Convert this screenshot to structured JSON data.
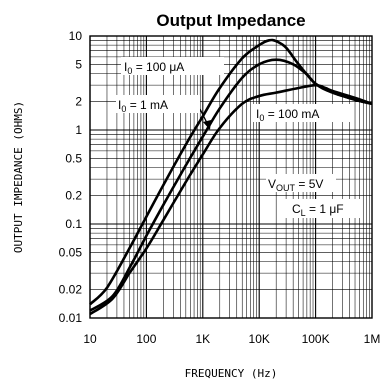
{
  "chart_data": {
    "type": "line",
    "title": "Output Impedance",
    "xlabel": "FREQUENCY (Hz)",
    "ylabel": "OUTPUT IMPEDANCE (OHMS)",
    "x_scale": "log",
    "y_scale": "log",
    "xlim": [
      10,
      1000000
    ],
    "ylim": [
      0.01,
      10
    ],
    "grid": true,
    "x_ticks": [
      {
        "value": 10,
        "label": "10"
      },
      {
        "value": 100,
        "label": "100"
      },
      {
        "value": 1000,
        "label": "1K"
      },
      {
        "value": 10000,
        "label": "10K"
      },
      {
        "value": 100000,
        "label": "100K"
      },
      {
        "value": 1000000,
        "label": "1M"
      }
    ],
    "y_ticks": [
      {
        "value": 10,
        "label": "10"
      },
      {
        "value": 5,
        "label": "5"
      },
      {
        "value": 2,
        "label": "2"
      },
      {
        "value": 1,
        "label": "1"
      },
      {
        "value": 0.5,
        "label": "0.5"
      },
      {
        "value": 0.2,
        "label": "0.2"
      },
      {
        "value": 0.1,
        "label": "0.1"
      },
      {
        "value": 0.05,
        "label": "0.05"
      },
      {
        "value": 0.02,
        "label": "0.02"
      },
      {
        "value": 0.01,
        "label": "0.01"
      }
    ],
    "series": [
      {
        "name": "I0 = 100 μA",
        "points": [
          [
            10,
            0.014
          ],
          [
            20,
            0.021
          ],
          [
            50,
            0.055
          ],
          [
            100,
            0.12
          ],
          [
            200,
            0.26
          ],
          [
            500,
            0.7
          ],
          [
            1000,
            1.4
          ],
          [
            2000,
            2.8
          ],
          [
            5000,
            5.8
          ],
          [
            10000,
            8.0
          ],
          [
            15000,
            9.0
          ],
          [
            20000,
            8.8
          ],
          [
            30000,
            7.5
          ],
          [
            50000,
            5.0
          ],
          [
            100000,
            3.1
          ],
          [
            200000,
            2.5
          ],
          [
            500000,
            2.1
          ],
          [
            1000000,
            1.9
          ]
        ]
      },
      {
        "name": "I0 = 1 mA",
        "points": [
          [
            10,
            0.012
          ],
          [
            25,
            0.017
          ],
          [
            50,
            0.034
          ],
          [
            100,
            0.075
          ],
          [
            200,
            0.16
          ],
          [
            500,
            0.42
          ],
          [
            1000,
            0.85
          ],
          [
            2000,
            1.7
          ],
          [
            5000,
            3.6
          ],
          [
            10000,
            5.0
          ],
          [
            20000,
            5.6
          ],
          [
            40000,
            5.0
          ],
          [
            70000,
            3.9
          ],
          [
            100000,
            3.1
          ],
          [
            200000,
            2.5
          ],
          [
            500000,
            2.1
          ],
          [
            1000000,
            1.9
          ]
        ]
      },
      {
        "name": "I0 = 100 mA",
        "points": [
          [
            10,
            0.011
          ],
          [
            25,
            0.016
          ],
          [
            50,
            0.03
          ],
          [
            100,
            0.055
          ],
          [
            200,
            0.11
          ],
          [
            500,
            0.28
          ],
          [
            1000,
            0.55
          ],
          [
            2000,
            1.05
          ],
          [
            5000,
            1.9
          ],
          [
            10000,
            2.3
          ],
          [
            20000,
            2.5
          ],
          [
            50000,
            2.8
          ],
          [
            100000,
            3.0
          ],
          [
            150000,
            2.8
          ],
          [
            200000,
            2.6
          ],
          [
            500000,
            2.2
          ],
          [
            1000000,
            1.9
          ]
        ]
      }
    ],
    "annotations": {
      "i100u": {
        "prefix": "I",
        "sub": "0",
        "text": " = 100 μA"
      },
      "i1m": {
        "prefix": "I",
        "sub": "0",
        "text": " = 1 mA"
      },
      "i100m": {
        "prefix": "I",
        "sub": "0",
        "text": " = 100 mA"
      },
      "vout": {
        "prefix": "V",
        "sub": "OUT",
        "text": " = 5V"
      },
      "cl": {
        "prefix": "C",
        "sub": "L",
        "text": " = 1 μF"
      }
    }
  }
}
